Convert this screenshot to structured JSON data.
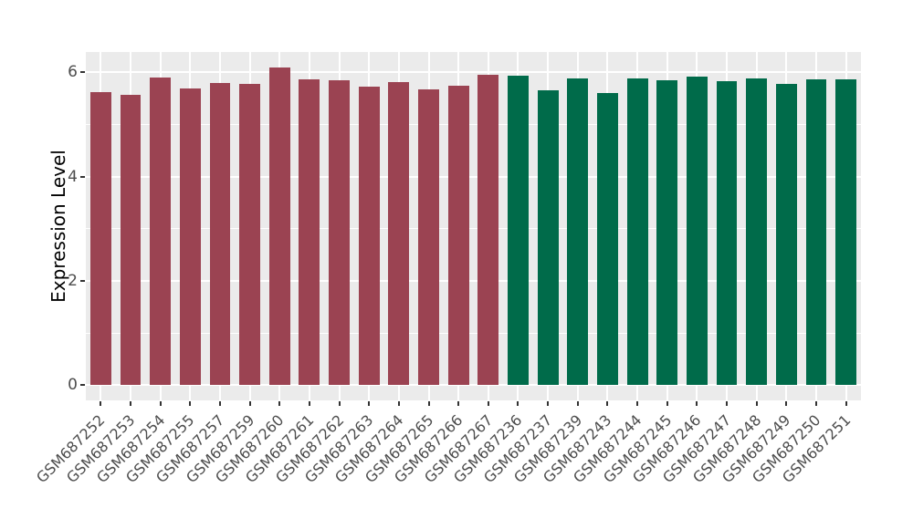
{
  "chart_data": {
    "type": "bar",
    "title": "",
    "xlabel": "",
    "ylabel": "Expression Level",
    "ytick_labels": [
      "0",
      "2",
      "4",
      "6"
    ],
    "yticks": [
      0,
      2,
      4,
      6
    ],
    "yticks_minor": [
      1,
      3,
      5
    ],
    "ylim": [
      -0.29,
      6.39
    ],
    "grid": true,
    "legend": "none",
    "panel_bg": "#EBEBEB",
    "grid_color": "#FFFFFF",
    "tick_text_color": "#4D4D4D",
    "groups": [
      {
        "id": "group-1",
        "color": "#9B4352"
      },
      {
        "id": "group-2",
        "color": "#006B4A"
      }
    ],
    "bars": [
      {
        "label": "GSM687252",
        "value": 5.62,
        "group": 0
      },
      {
        "label": "GSM687253",
        "value": 5.57,
        "group": 0
      },
      {
        "label": "GSM687254",
        "value": 5.9,
        "group": 0
      },
      {
        "label": "GSM687255",
        "value": 5.69,
        "group": 0
      },
      {
        "label": "GSM687257",
        "value": 5.79,
        "group": 0
      },
      {
        "label": "GSM687259",
        "value": 5.77,
        "group": 0
      },
      {
        "label": "GSM687260",
        "value": 6.1,
        "group": 0
      },
      {
        "label": "GSM687261",
        "value": 5.87,
        "group": 0
      },
      {
        "label": "GSM687262",
        "value": 5.84,
        "group": 0
      },
      {
        "label": "GSM687263",
        "value": 5.72,
        "group": 0
      },
      {
        "label": "GSM687264",
        "value": 5.81,
        "group": 0
      },
      {
        "label": "GSM687265",
        "value": 5.67,
        "group": 0
      },
      {
        "label": "GSM687266",
        "value": 5.74,
        "group": 0
      },
      {
        "label": "GSM687267",
        "value": 5.95,
        "group": 0
      },
      {
        "label": "GSM687236",
        "value": 5.94,
        "group": 1
      },
      {
        "label": "GSM687237",
        "value": 5.66,
        "group": 1
      },
      {
        "label": "GSM687239",
        "value": 5.89,
        "group": 1
      },
      {
        "label": "GSM687243",
        "value": 5.61,
        "group": 1
      },
      {
        "label": "GSM687244",
        "value": 5.88,
        "group": 1
      },
      {
        "label": "GSM687245",
        "value": 5.85,
        "group": 1
      },
      {
        "label": "GSM687246",
        "value": 5.91,
        "group": 1
      },
      {
        "label": "GSM687247",
        "value": 5.83,
        "group": 1
      },
      {
        "label": "GSM687248",
        "value": 5.88,
        "group": 1
      },
      {
        "label": "GSM687249",
        "value": 5.78,
        "group": 1
      },
      {
        "label": "GSM687250",
        "value": 5.86,
        "group": 1
      },
      {
        "label": "GSM687251",
        "value": 5.87,
        "group": 1
      }
    ]
  }
}
